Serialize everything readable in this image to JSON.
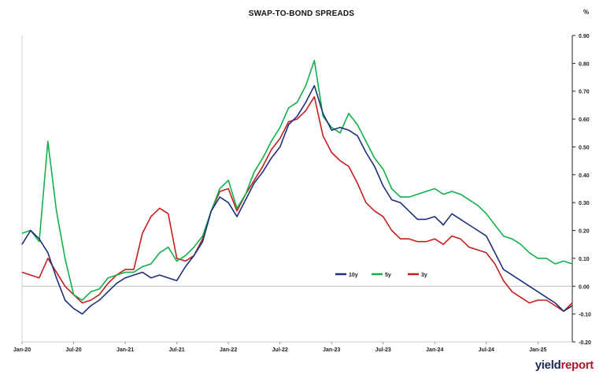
{
  "unit_label": "%",
  "branding": {
    "word_a": "yield",
    "word_b": "report"
  },
  "chart_data": {
    "type": "line",
    "title": "SWAP-TO-BOND SPREADS",
    "xlabel": "",
    "ylabel": "",
    "ylim": [
      -0.2,
      0.9
    ],
    "x_tick_labels": [
      "Jan-20",
      "Jul-20",
      "Jan-21",
      "Jul-21",
      "Jan-22",
      "Jul-22",
      "Jan-23",
      "Jul-23",
      "Jan-24",
      "Jul-24",
      "Jan-25"
    ],
    "y_ticks": [
      0.9,
      0.8,
      0.7,
      0.6,
      0.5,
      0.4,
      0.3,
      0.2,
      0.1,
      0.0,
      -0.1,
      -0.2
    ],
    "y_tick_labels": [
      "0.90",
      "0.80",
      "0.70",
      "0.60",
      "0.50",
      "0.40",
      "0.30",
      "0.20",
      "0.10",
      "0.00",
      "-0.10",
      "-0.20"
    ],
    "grid": false,
    "legend_position": "center-right",
    "x": [
      "Jan-20",
      "Feb-20",
      "Mar-20",
      "Apr-20",
      "May-20",
      "Jun-20",
      "Jul-20",
      "Aug-20",
      "Sep-20",
      "Oct-20",
      "Nov-20",
      "Dec-20",
      "Jan-21",
      "Feb-21",
      "Mar-21",
      "Apr-21",
      "May-21",
      "Jun-21",
      "Jul-21",
      "Aug-21",
      "Sep-21",
      "Oct-21",
      "Nov-21",
      "Dec-21",
      "Jan-22",
      "Feb-22",
      "Mar-22",
      "Apr-22",
      "May-22",
      "Jun-22",
      "Jul-22",
      "Aug-22",
      "Sep-22",
      "Oct-22",
      "Nov-22",
      "Dec-22",
      "Jan-23",
      "Feb-23",
      "Mar-23",
      "Apr-23",
      "May-23",
      "Jun-23",
      "Jul-23",
      "Aug-23",
      "Sep-23",
      "Oct-23",
      "Nov-23",
      "Dec-23",
      "Jan-24",
      "Feb-24",
      "Mar-24",
      "Apr-24",
      "May-24",
      "Jun-24",
      "Jul-24",
      "Aug-24",
      "Sep-24",
      "Oct-24",
      "Nov-24",
      "Dec-24",
      "Jan-25",
      "Feb-25",
      "Mar-25",
      "Apr-25",
      "May-25"
    ],
    "series": [
      {
        "name": "10y",
        "color": "#1f2f7a",
        "values": [
          0.15,
          0.2,
          0.17,
          0.12,
          0.03,
          -0.05,
          -0.08,
          -0.1,
          -0.07,
          -0.05,
          -0.02,
          0.01,
          0.03,
          0.04,
          0.05,
          0.03,
          0.04,
          0.03,
          0.02,
          0.07,
          0.11,
          0.16,
          0.27,
          0.32,
          0.3,
          0.25,
          0.31,
          0.37,
          0.41,
          0.46,
          0.5,
          0.58,
          0.61,
          0.66,
          0.72,
          0.62,
          0.56,
          0.57,
          0.56,
          0.54,
          0.48,
          0.43,
          0.36,
          0.31,
          0.3,
          0.27,
          0.24,
          0.24,
          0.25,
          0.22,
          0.26,
          0.24,
          0.22,
          0.2,
          0.18,
          0.12,
          0.06,
          0.04,
          0.02,
          0.0,
          -0.02,
          -0.04,
          -0.06,
          -0.09,
          -0.07
        ]
      },
      {
        "name": "5y",
        "color": "#12b04a",
        "values": [
          0.19,
          0.2,
          0.16,
          0.52,
          0.27,
          0.1,
          -0.03,
          -0.05,
          -0.02,
          -0.01,
          0.03,
          0.04,
          0.05,
          0.05,
          0.07,
          0.08,
          0.12,
          0.14,
          0.09,
          0.11,
          0.14,
          0.18,
          0.27,
          0.35,
          0.38,
          0.28,
          0.33,
          0.41,
          0.46,
          0.52,
          0.57,
          0.64,
          0.66,
          0.72,
          0.81,
          0.61,
          0.57,
          0.55,
          0.62,
          0.58,
          0.52,
          0.46,
          0.42,
          0.35,
          0.32,
          0.32,
          0.33,
          0.34,
          0.35,
          0.33,
          0.34,
          0.33,
          0.31,
          0.29,
          0.26,
          0.22,
          0.18,
          0.17,
          0.15,
          0.12,
          0.1,
          0.1,
          0.08,
          0.09,
          0.08
        ]
      },
      {
        "name": "3y",
        "color": "#c41e1e",
        "values": [
          0.05,
          0.04,
          0.03,
          0.1,
          0.05,
          0.0,
          -0.03,
          -0.06,
          -0.05,
          -0.03,
          0.01,
          0.04,
          0.06,
          0.06,
          0.19,
          0.25,
          0.28,
          0.26,
          0.1,
          0.09,
          0.11,
          0.17,
          0.27,
          0.34,
          0.35,
          0.27,
          0.33,
          0.38,
          0.43,
          0.49,
          0.53,
          0.59,
          0.6,
          0.63,
          0.68,
          0.54,
          0.48,
          0.45,
          0.43,
          0.37,
          0.3,
          0.27,
          0.25,
          0.2,
          0.17,
          0.17,
          0.16,
          0.16,
          0.17,
          0.15,
          0.18,
          0.17,
          0.14,
          0.13,
          0.12,
          0.08,
          0.02,
          -0.02,
          -0.04,
          -0.06,
          -0.05,
          -0.05,
          -0.07,
          -0.09,
          -0.06
        ]
      }
    ]
  }
}
